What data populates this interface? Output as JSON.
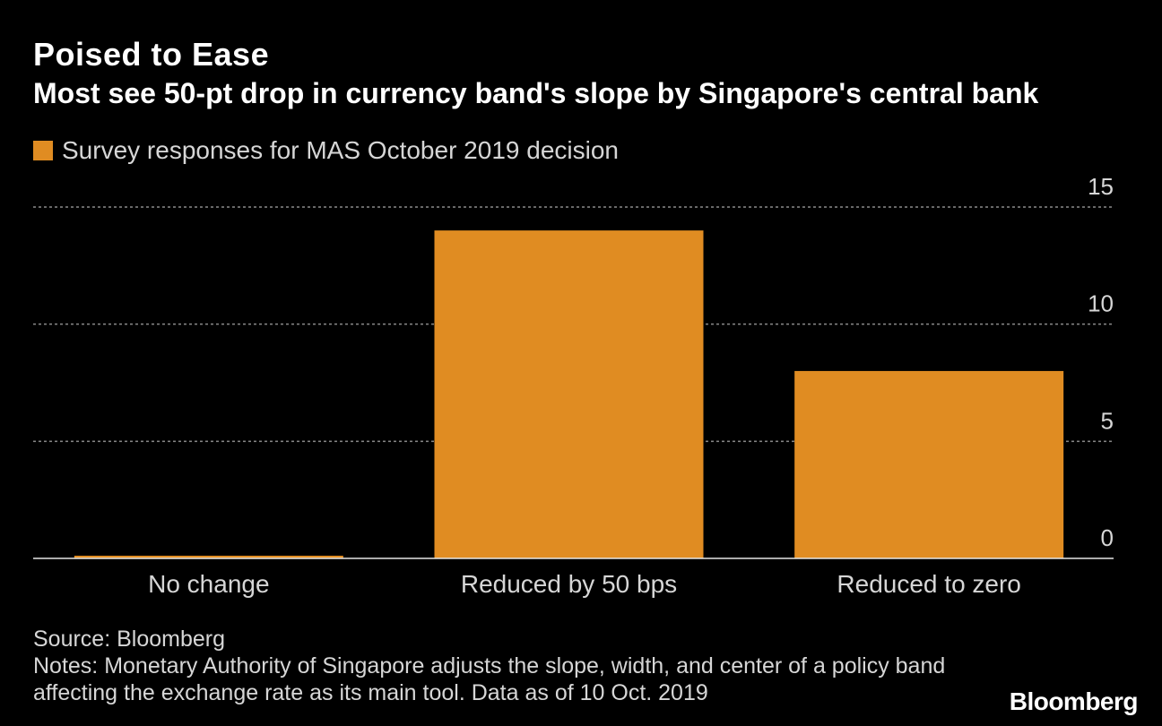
{
  "title": "Poised to Ease",
  "subtitle": "Most see 50-pt drop in currency band's slope by Singapore's central bank",
  "footer": {
    "source": "Source: Bloomberg",
    "notes": "Notes: Monetary Authority of Singapore adjusts the slope, width, and center of a policy band affecting the exchange rate as its main tool. Data as of 10 Oct. 2019",
    "brand": "Bloomberg"
  },
  "colors": {
    "background": "#000000",
    "bar": "#e08c22",
    "grid": "#8a8a8a",
    "text": "#ffffff",
    "muted_text": "#d6d6d6"
  },
  "chart_data": {
    "type": "bar",
    "categories": [
      "No change",
      "Reduced by 50 bps",
      "Reduced to zero"
    ],
    "series": [
      {
        "name": "Survey responses for MAS October 2019 decision",
        "values": [
          0,
          14,
          8
        ]
      }
    ],
    "xlabel": "",
    "ylabel": "",
    "ylim": [
      0,
      15
    ],
    "yticks": [
      0,
      5,
      10,
      15
    ],
    "grid": true,
    "legend_position": "top-left"
  }
}
